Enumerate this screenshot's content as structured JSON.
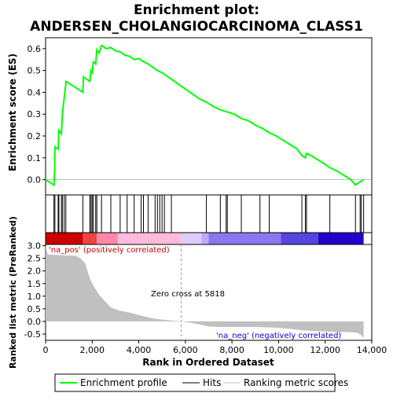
{
  "chart_data": {
    "type": "line",
    "title_line1": "Enrichment plot:",
    "title_line2": "ANDERSEN_CHOLANGIOCARCINOMA_CLASS1",
    "top_panel": {
      "ylabel": "Enrichment score (ES)",
      "ylim": [
        -0.07,
        0.65
      ],
      "yticks": [
        0.0,
        0.1,
        0.2,
        0.3,
        0.4,
        0.5,
        0.6
      ],
      "ytick_labels": [
        "0.0",
        "0.1",
        "0.2",
        "0.3",
        "0.4",
        "0.5",
        "0.6"
      ],
      "line_color": "#00ff00",
      "baseline_color": "#c0c0c0",
      "es_x": [
        0,
        360,
        390,
        400,
        540,
        570,
        680,
        720,
        800,
        870,
        880,
        1600,
        1620,
        1900,
        1950,
        2000,
        2050,
        2150,
        2200,
        2300,
        2400,
        2600,
        2800,
        3000,
        3200,
        3400,
        3600,
        3800,
        4000,
        4200,
        4400,
        4600,
        4800,
        5000,
        5200,
        5400,
        5600,
        5800,
        6000,
        6200,
        6400,
        6600,
        6900,
        7200,
        7500,
        7800,
        8100,
        8400,
        8700,
        9000,
        9300,
        9600,
        9900,
        10200,
        10500,
        10800,
        11000,
        11150,
        11200,
        11400,
        11700,
        12000,
        12200,
        12500,
        12800,
        13100,
        13300,
        13350,
        13500,
        13600,
        13650
      ],
      "es_y": [
        0.0,
        -0.025,
        0.04,
        0.15,
        0.14,
        0.225,
        0.21,
        0.3,
        0.375,
        0.44,
        0.45,
        0.4,
        0.47,
        0.45,
        0.5,
        0.49,
        0.54,
        0.53,
        0.595,
        0.58,
        0.615,
        0.6,
        0.605,
        0.59,
        0.585,
        0.57,
        0.565,
        0.55,
        0.555,
        0.54,
        0.53,
        0.515,
        0.5,
        0.49,
        0.475,
        0.46,
        0.445,
        0.43,
        0.415,
        0.4,
        0.385,
        0.37,
        0.355,
        0.335,
        0.32,
        0.31,
        0.3,
        0.28,
        0.27,
        0.25,
        0.235,
        0.215,
        0.2,
        0.18,
        0.16,
        0.14,
        0.11,
        0.1,
        0.12,
        0.11,
        0.09,
        0.07,
        0.055,
        0.04,
        0.02,
        0.0,
        -0.025,
        -0.02,
        -0.01,
        -0.005,
        0.0
      ]
    },
    "hits_panel": {
      "hit_positions": [
        360,
        400,
        540,
        570,
        680,
        720,
        800,
        870,
        1600,
        1900,
        1950,
        2000,
        2050,
        2150,
        2200,
        2400,
        2800,
        3200,
        3500,
        3800,
        4100,
        4200,
        4400,
        4700,
        4800,
        4900,
        5000,
        5100,
        5400,
        6900,
        7500,
        7750,
        7800,
        8400,
        9200,
        9600,
        11000,
        11150,
        11200,
        12200,
        13300,
        13500,
        13550,
        13650
      ]
    },
    "metric_panel": {
      "ylabel": "Ranked list metric (PreRanked)",
      "ylim": [
        -0.75,
        3.05
      ],
      "yticks": [
        -0.5,
        0.0,
        0.5,
        1.0,
        1.5,
        2.0,
        2.5,
        3.0
      ],
      "ytick_labels": [
        "-0.5",
        "0.0",
        "0.5",
        "1.0",
        "1.5",
        "2.0",
        "2.5",
        "3.0"
      ],
      "fill_color": "#c0c0c0",
      "metric_x": [
        0,
        100,
        1300,
        1500,
        1700,
        1800,
        1900,
        2000,
        2100,
        2200,
        2300,
        2400,
        2500,
        2600,
        2700,
        2800,
        3000,
        3200,
        3500,
        3800,
        4000,
        4300,
        4600,
        5000,
        5400,
        5818,
        6200,
        6600,
        7000,
        7500,
        8000,
        9000,
        10000,
        10500,
        11000,
        11500,
        12000,
        12500,
        13000,
        13400,
        13550,
        13650
      ],
      "metric_y": [
        3.0,
        2.65,
        2.6,
        2.5,
        2.3,
        2.0,
        1.7,
        1.5,
        1.35,
        1.2,
        1.05,
        0.95,
        0.85,
        0.75,
        0.65,
        0.55,
        0.48,
        0.42,
        0.37,
        0.3,
        0.25,
        0.18,
        0.12,
        0.07,
        0.04,
        0.0,
        -0.05,
        -0.12,
        -0.2,
        -0.22,
        -0.22,
        -0.22,
        -0.25,
        -0.3,
        -0.35,
        -0.38,
        -0.4,
        -0.42,
        -0.42,
        -0.45,
        -0.55,
        -0.65
      ],
      "label_pos": "'na_pos' (positively correlated)",
      "label_neg": "'na_neg' (negatively correlated)",
      "zero_cross_label": "Zero cross at 5818",
      "zero_cross_x": 5818
    },
    "xlabel": "Rank in Ordered Dataset",
    "xlim": [
      0,
      14000
    ],
    "xticks": [
      0,
      2000,
      4000,
      6000,
      8000,
      10000,
      12000,
      14000
    ],
    "xtick_labels": [
      "0",
      "2,000",
      "4,000",
      "6,000",
      "8,000",
      "10,000",
      "12,000",
      "14,000"
    ],
    "ranked_bar": {
      "segments": [
        {
          "start": 0,
          "end": 1600,
          "color": "#cc0000"
        },
        {
          "start": 1600,
          "end": 2200,
          "color": "#ee4444"
        },
        {
          "start": 2200,
          "end": 3100,
          "color": "#ff88aa"
        },
        {
          "start": 3100,
          "end": 5818,
          "color": "#ffbbdd"
        },
        {
          "start": 5818,
          "end": 6700,
          "color": "#ddccff"
        },
        {
          "start": 6700,
          "end": 7000,
          "color": "#bbaaff"
        },
        {
          "start": 7000,
          "end": 10100,
          "color": "#8877ee"
        },
        {
          "start": 10100,
          "end": 11700,
          "color": "#5544dd"
        },
        {
          "start": 11700,
          "end": 13650,
          "color": "#2200cc"
        }
      ]
    },
    "legend": [
      {
        "label": "Enrichment profile",
        "color": "#00ff00",
        "kind": "line"
      },
      {
        "label": "Hits",
        "color": "#000000",
        "kind": "line"
      },
      {
        "label": "Ranking metric scores",
        "color": "#c0c0c0",
        "kind": "line"
      }
    ]
  }
}
